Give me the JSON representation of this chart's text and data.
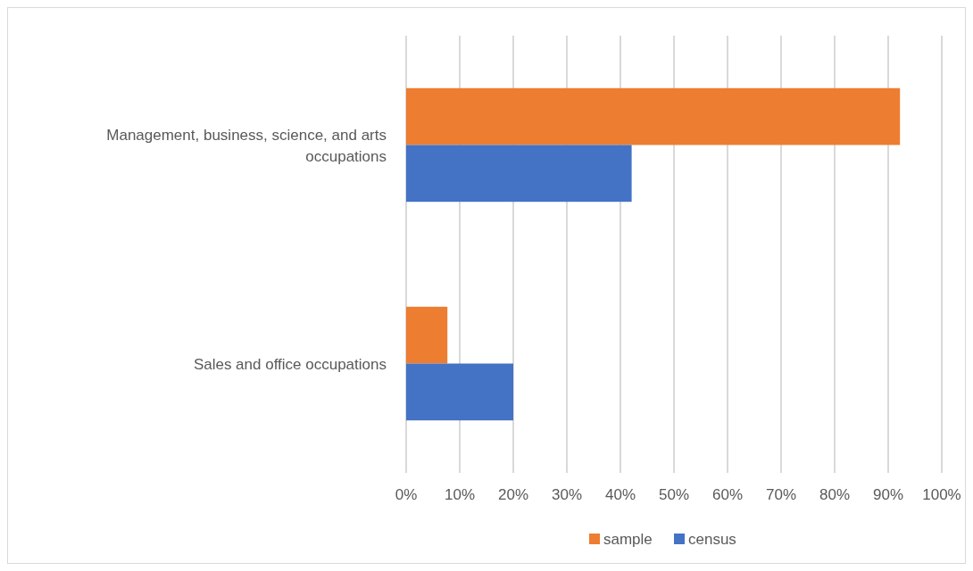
{
  "chart_data": {
    "type": "bar",
    "orientation": "horizontal",
    "categories": [
      "Management, business, science, and arts occupations",
      "Sales and office occupations"
    ],
    "series": [
      {
        "name": "sample",
        "color": "#ed7d31",
        "values": [
          92.2,
          7.7
        ]
      },
      {
        "name": "census",
        "color": "#4472c4",
        "values": [
          42.1,
          20
        ]
      }
    ],
    "xlim": [
      0,
      100
    ],
    "xticks": [
      {
        "value": 0,
        "label": "0%"
      },
      {
        "value": 10,
        "label": "10%"
      },
      {
        "value": 20,
        "label": "20%"
      },
      {
        "value": 30,
        "label": "30%"
      },
      {
        "value": 40,
        "label": "40%"
      },
      {
        "value": 50,
        "label": "50%"
      },
      {
        "value": 60,
        "label": "60%"
      },
      {
        "value": 70,
        "label": "70%"
      },
      {
        "value": 80,
        "label": "80%"
      },
      {
        "value": 90,
        "label": "90%"
      },
      {
        "value": 100,
        "label": "100%"
      }
    ],
    "grid": "x",
    "legend": "bottom"
  }
}
